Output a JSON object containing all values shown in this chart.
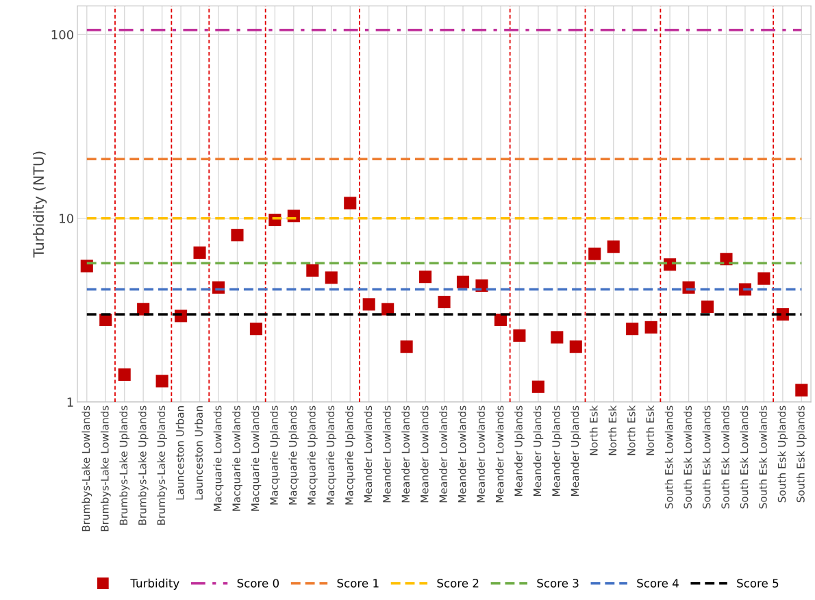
{
  "chart_data": {
    "type": "scatter",
    "ylabel": "Turbidity (NTU)",
    "log": "y",
    "ylim": [
      1,
      143
    ],
    "yticks": [
      1,
      10,
      100
    ],
    "grid": true,
    "legend": "bottom",
    "categories": [
      "Brumbys-Lake Lowlands",
      "Brumbys-Lake Lowlands",
      "Brumbys-Lake Uplands",
      "Brumbys-Lake Uplands",
      "Brumbys-Lake Uplands",
      "Launceston Urban",
      "Launceston Urban",
      "Macquarie Lowlands",
      "Macquarie Lowlands",
      "Macquarie Lowlands",
      "Macquarie Uplands",
      "Macquarie Uplands",
      "Macquarie Uplands",
      "Macquarie Uplands",
      "Macquarie Uplands",
      "Meander Lowlands",
      "Meander Lowlands",
      "Meander Lowlands",
      "Meander Lowlands",
      "Meander Lowlands",
      "Meander Lowlands",
      "Meander Lowlands",
      "Meander Lowlands",
      "Meander Uplands",
      "Meander Uplands",
      "Meander Uplands",
      "Meander Uplands",
      "North Esk",
      "North Esk",
      "North Esk",
      "North Esk",
      "South Esk Lowlands",
      "South Esk Lowlands",
      "South Esk Lowlands",
      "South Esk Lowlands",
      "South Esk Lowlands",
      "South Esk Lowlands",
      "South Esk Uplands",
      "South Esk Uplands"
    ],
    "series": [
      {
        "name": "Turbidity",
        "marker": "square",
        "color": "#c00000",
        "values": [
          5.5,
          2.8,
          1.41,
          3.2,
          1.3,
          2.94,
          6.5,
          4.2,
          8.1,
          2.5,
          9.8,
          10.3,
          5.2,
          4.75,
          12.1,
          3.4,
          3.2,
          2.0,
          4.8,
          3.5,
          4.5,
          4.3,
          2.8,
          2.3,
          1.21,
          2.25,
          2.0,
          6.4,
          7.0,
          2.5,
          2.55,
          5.6,
          4.2,
          3.3,
          6.0,
          4.1,
          4.7,
          3.0,
          1.16
        ]
      },
      {
        "name": "Score 0",
        "type": "line",
        "line_style": "dashdot",
        "color": "#c0309a",
        "values": [
          106,
          106,
          106,
          106,
          106,
          106,
          106,
          106,
          106,
          106,
          106,
          106,
          106,
          106,
          106,
          106,
          106,
          106,
          106,
          106,
          106,
          106,
          106,
          106,
          106,
          106,
          106,
          106,
          106,
          106,
          106,
          106,
          106,
          106,
          106,
          106,
          106,
          106,
          106
        ]
      },
      {
        "name": "Score 1",
        "type": "line",
        "line_style": "dashed",
        "color": "#ed7d31",
        "values": [
          21,
          21,
          21,
          21,
          21,
          21,
          21,
          21,
          21,
          21,
          21,
          21,
          21,
          21,
          21,
          21,
          21,
          21,
          21,
          21,
          21,
          21,
          21,
          21,
          21,
          21,
          21,
          21,
          21,
          21,
          21,
          21,
          21,
          21,
          21,
          21,
          21,
          21,
          21
        ]
      },
      {
        "name": "Score 2",
        "type": "line",
        "line_style": "dashed",
        "color": "#ffc000",
        "values": [
          10,
          10,
          10,
          10,
          10,
          10,
          10,
          10,
          10,
          10,
          10,
          10,
          10,
          10,
          10,
          10,
          10,
          10,
          10,
          10,
          10,
          10,
          10,
          10,
          10,
          10,
          10,
          10,
          10,
          10,
          10,
          10,
          10,
          10,
          10,
          10,
          10,
          10,
          10
        ]
      },
      {
        "name": "Score 3",
        "type": "line",
        "line_style": "dashed",
        "color": "#70ad47",
        "values": [
          5.7,
          5.7,
          5.7,
          5.7,
          5.7,
          5.7,
          5.7,
          5.7,
          5.7,
          5.7,
          5.7,
          5.7,
          5.7,
          5.7,
          5.7,
          5.7,
          5.7,
          5.7,
          5.7,
          5.7,
          5.7,
          5.7,
          5.7,
          5.7,
          5.7,
          5.7,
          5.7,
          5.7,
          5.7,
          5.7,
          5.7,
          5.7,
          5.7,
          5.7,
          5.7,
          5.7,
          5.7,
          5.7,
          5.7
        ]
      },
      {
        "name": "Score 4",
        "type": "line",
        "line_style": "dashed",
        "color": "#4472c4",
        "values": [
          4.1,
          4.1,
          4.1,
          4.1,
          4.1,
          4.1,
          4.1,
          4.1,
          4.1,
          4.1,
          4.1,
          4.1,
          4.1,
          4.1,
          4.1,
          4.1,
          4.1,
          4.1,
          4.1,
          4.1,
          4.1,
          4.1,
          4.1,
          4.1,
          4.1,
          4.1,
          4.1,
          4.1,
          4.1,
          4.1,
          4.1,
          4.1,
          4.1,
          4.1,
          4.1,
          4.1,
          4.1,
          4.1,
          4.1
        ]
      },
      {
        "name": "Score 5",
        "type": "line",
        "line_style": "dashed",
        "color": "#000000",
        "values": [
          3.0,
          3.0,
          3.0,
          3.0,
          3.0,
          3.0,
          3.0,
          3.0,
          3.0,
          3.0,
          3.0,
          3.0,
          3.0,
          3.0,
          3.0,
          3.0,
          3.0,
          3.0,
          3.0,
          3.0,
          3.0,
          3.0,
          3.0,
          3.0,
          3.0,
          3.0,
          3.0,
          3.0,
          3.0,
          3.0,
          3.0,
          3.0,
          3.0,
          3.0,
          3.0,
          3.0,
          3.0,
          3.0,
          3.0
        ]
      }
    ]
  }
}
